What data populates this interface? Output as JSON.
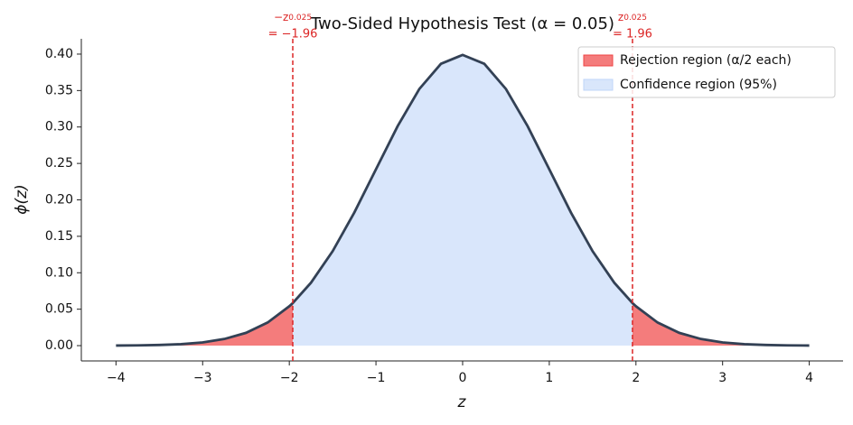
{
  "chart_data": {
    "type": "area_curve",
    "title": "Two-Sided Hypothesis Test (α = 0.05)",
    "xlabel": "z",
    "ylabel": "ϕ(z)",
    "x": [
      -4,
      -3.75,
      -3.5,
      -3.25,
      -3,
      -2.75,
      -2.5,
      -2.25,
      -2,
      -1.96,
      -1.75,
      -1.5,
      -1.25,
      -1,
      -0.75,
      -0.5,
      -0.25,
      0,
      0.25,
      0.5,
      0.75,
      1,
      1.25,
      1.5,
      1.75,
      1.96,
      2,
      2.25,
      2.5,
      2.75,
      3,
      3.25,
      3.5,
      3.75,
      4
    ],
    "values": [
      0.0001,
      0.0004,
      0.0009,
      0.002,
      0.0044,
      0.0091,
      0.0175,
      0.0317,
      0.054,
      0.0584,
      0.0863,
      0.1295,
      0.1826,
      0.242,
      0.3011,
      0.3521,
      0.3867,
      0.3989,
      0.3867,
      0.3521,
      0.3011,
      0.242,
      0.1826,
      0.1295,
      0.0863,
      0.0584,
      0.054,
      0.0317,
      0.0175,
      0.0091,
      0.0044,
      0.002,
      0.0009,
      0.0004,
      0.0001
    ],
    "color": "#334155",
    "regions": [
      {
        "name": "Rejection region (α/2 each)",
        "color": "#ef4444"
      },
      {
        "name": "Confidence region (95%)",
        "color": "#bfd5f8"
      }
    ],
    "critical": [
      {
        "value": -1.96,
        "symbol": "−z",
        "subscript": "0.025",
        "value_label": "= −1.96"
      },
      {
        "value": 1.96,
        "symbol": "z",
        "subscript": "0.025",
        "value_label": "= 1.96"
      }
    ],
    "critical_color": "#dc2626",
    "xlim": [
      -4.4,
      4.39
    ],
    "ylim": [
      -0.021,
      0.421
    ],
    "xticks": [
      {
        "value": -4,
        "label": "−4"
      },
      {
        "value": -3,
        "label": "−3"
      },
      {
        "value": -2,
        "label": "−2"
      },
      {
        "value": -1,
        "label": "−1"
      },
      0,
      1,
      2,
      3,
      4
    ],
    "yticks": [
      {
        "value": 0,
        "label": "0.00"
      },
      {
        "value": 0.05,
        "label": "0.05"
      },
      {
        "value": 0.1,
        "label": "0.10"
      },
      {
        "value": 0.15,
        "label": "0.15"
      },
      {
        "value": 0.2,
        "label": "0.20"
      },
      {
        "value": 0.25,
        "label": "0.25"
      },
      {
        "value": 0.3,
        "label": "0.30"
      },
      {
        "value": 0.35,
        "label": "0.35"
      },
      {
        "value": 0.4,
        "label": "0.40"
      }
    ],
    "legend": "upper right"
  }
}
